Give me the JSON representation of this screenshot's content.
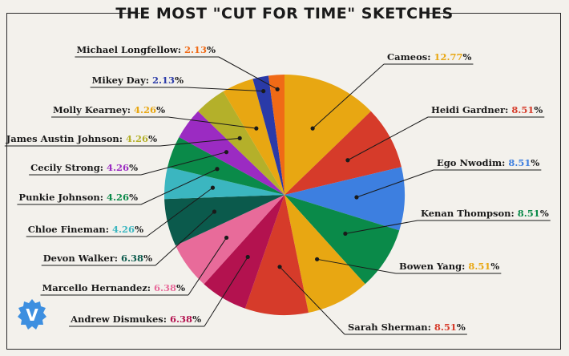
{
  "title": "THE MOST \"CUT FOR TIME\" SKETCHES",
  "logo_text": "V",
  "chart_data": {
    "type": "pie",
    "title": "THE MOST \"CUT FOR TIME\" SKETCHES",
    "unit": "%",
    "slices": [
      {
        "label": "Cameos",
        "value": 12.77,
        "color": "#e8a712",
        "value_color": "#e8a712"
      },
      {
        "label": "Heidi Gardner",
        "value": 8.51,
        "color": "#d63b2a",
        "value_color": "#d63b2a"
      },
      {
        "label": "Ego Nwodim",
        "value": 8.51,
        "color": "#3d7fe0",
        "value_color": "#3d7fe0"
      },
      {
        "label": "Kenan Thompson",
        "value": 8.51,
        "color": "#0a8a49",
        "value_color": "#0a8a49"
      },
      {
        "label": "Bowen Yang",
        "value": 8.51,
        "color": "#e8a712",
        "value_color": "#e8a712"
      },
      {
        "label": "Sarah Sherman",
        "value": 8.51,
        "color": "#d63b2a",
        "value_color": "#d63b2a"
      },
      {
        "label": "Andrew Dismukes",
        "value": 6.38,
        "color": "#b3124f",
        "value_color": "#b3124f"
      },
      {
        "label": "Marcello Hernandez",
        "value": 6.38,
        "color": "#e86b9a",
        "value_color": "#e86b9a"
      },
      {
        "label": "Devon Walker",
        "value": 6.38,
        "color": "#0b5a4c",
        "value_color": "#0b5a4c"
      },
      {
        "label": "Chloe Fineman",
        "value": 4.26,
        "color": "#3bb6c0",
        "value_color": "#3bb6c0"
      },
      {
        "label": "Punkie Johnson",
        "value": 4.26,
        "color": "#0a8a49",
        "value_color": "#0a8a49"
      },
      {
        "label": "Cecily Strong",
        "value": 4.26,
        "color": "#9b2bc2",
        "value_color": "#9b2bc2"
      },
      {
        "label": "James Austin Johnson",
        "value": 4.26,
        "color": "#b4b02a",
        "value_color": "#b4b02a"
      },
      {
        "label": "Molly Kearney",
        "value": 4.26,
        "color": "#e8a712",
        "value_color": "#e8a712"
      },
      {
        "label": "Mikey Day",
        "value": 2.13,
        "color": "#2a3aa8",
        "value_color": "#2a3aa8"
      },
      {
        "label": "Michael Longfellow",
        "value": 2.13,
        "color": "#f06a16",
        "value_color": "#f06a16"
      }
    ]
  }
}
